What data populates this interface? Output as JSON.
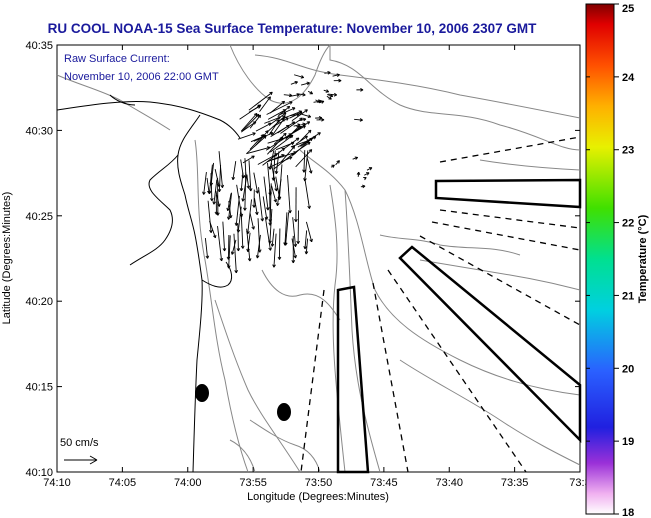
{
  "title": "RU COOL  NOAA-15  Sea Surface Temperature:  November 10, 2006 2307 GMT",
  "annotation": {
    "line1": "Raw Surface Current:",
    "line2": "November 10, 2006 22:00 GMT"
  },
  "scale_label": "50 cm/s",
  "xlabel": "Longitude (Degrees:Minutes)",
  "ylabel": "Latitude (Degrees:Minutes)",
  "x_ticks": [
    "74:10",
    "74:05",
    "74:00",
    "73:55",
    "73:50",
    "73:45",
    "73:40",
    "73:35",
    "73:3"
  ],
  "y_ticks": [
    "40:35",
    "40:30",
    "40:25",
    "40:20",
    "40:15",
    "40:10"
  ],
  "colorbar": {
    "label": "Temperature (°C)",
    "min": 18,
    "max": 25,
    "ticks": [
      "25",
      "24",
      "23",
      "22",
      "21",
      "20",
      "19",
      "18"
    ]
  },
  "colors": {
    "title": "#1a1a9c",
    "annotation": "#1a1a9c",
    "contour": "#888888",
    "coast": "#000000"
  }
}
